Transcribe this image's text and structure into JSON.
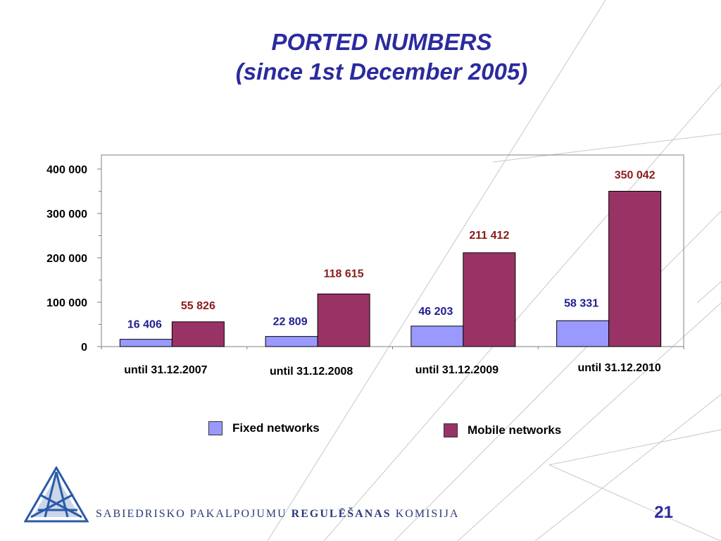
{
  "slide": {
    "title_line1": "PORTED NUMBERS",
    "title_line2": "(since  1st December 2005)",
    "footer_text_1": "SABIEDRISKO PAKALPOJUMU ",
    "footer_text_bold": "REGULĒŠANAS",
    "footer_text_2": " KOMISIJA",
    "page_number": "21"
  },
  "colors": {
    "fixed": "#9999ff",
    "mobile": "#993366",
    "fixed_label": "#1f1f8f",
    "mobile_label": "#8b1a1a",
    "title": "#2b2b9e"
  },
  "chart_data": {
    "type": "bar",
    "categories": [
      "until 31.12.2007",
      "until 31.12.2008",
      "until 31.12.2009",
      "until 31.12.2010"
    ],
    "series": [
      {
        "name": "Fixed networks",
        "values": [
          16406,
          22809,
          46203,
          58331
        ],
        "labels": [
          "16 406",
          "22 809",
          "46 203",
          "58 331"
        ]
      },
      {
        "name": "Mobile networks",
        "values": [
          55826,
          118615,
          211412,
          350042
        ],
        "labels": [
          "55 826",
          "118 615",
          "211 412",
          "350 042"
        ]
      }
    ],
    "y_ticks": [
      0,
      100000,
      200000,
      300000,
      400000
    ],
    "y_tick_labels": [
      "0",
      "100 000",
      "200 000",
      "300 000",
      "400 000"
    ],
    "ylim": [
      0,
      400000
    ],
    "grid": false,
    "legend_placement": "bottom"
  }
}
